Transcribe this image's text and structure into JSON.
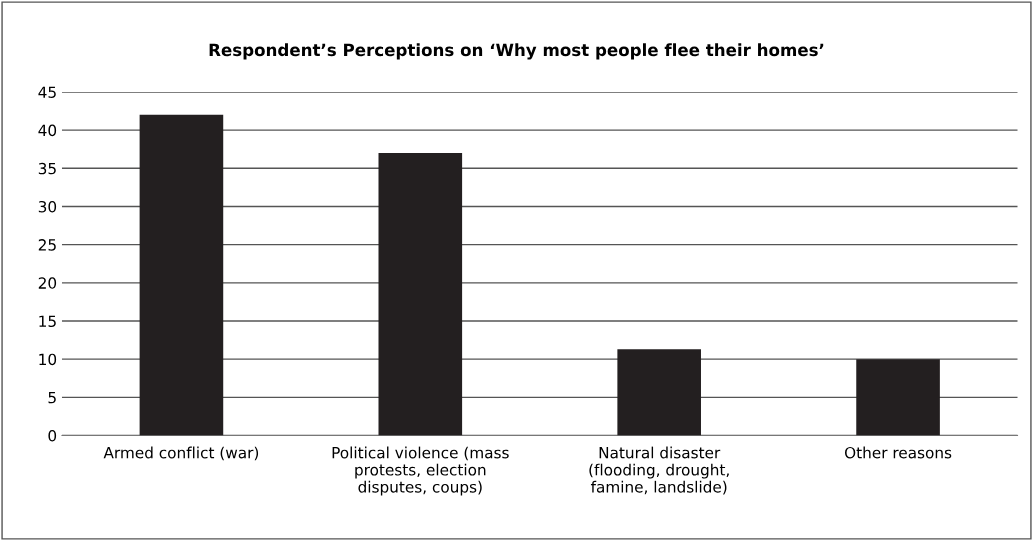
{
  "chart_data": {
    "type": "bar",
    "title": "Respondent’s Perceptions on ‘Why most people flee their homes’",
    "categories": [
      "Armed conflict (war)",
      "Political violence (mass\nprotests, election\ndisputes, coups)",
      "Natural disaster\n(flooding, drought,\nfamine, landslide)",
      "Other reasons"
    ],
    "values": [
      42,
      37,
      11.3,
      10
    ],
    "color": "#231f20",
    "ylim": [
      0,
      45
    ],
    "yticks": [
      0,
      5,
      10,
      15,
      20,
      25,
      30,
      35,
      40,
      45
    ],
    "grid": "y"
  }
}
